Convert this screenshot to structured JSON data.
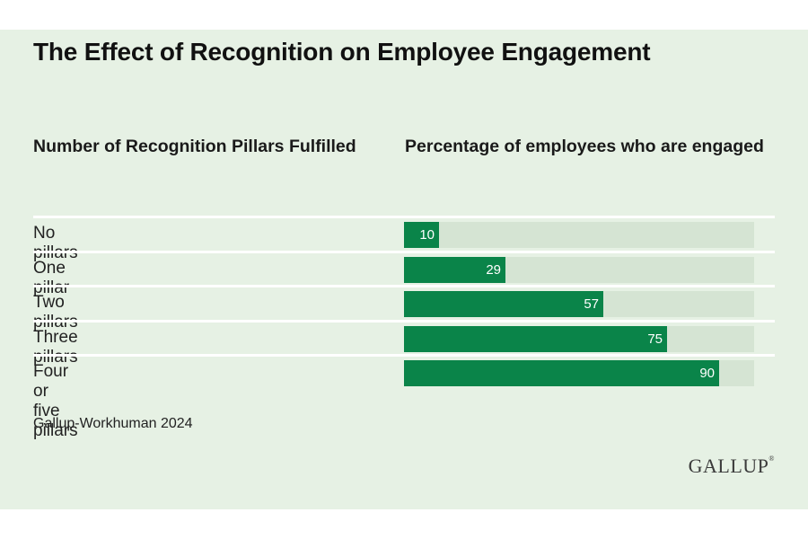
{
  "chart_data": {
    "type": "bar",
    "orientation": "horizontal",
    "title": "The Effect of Recognition on Employee Engagement",
    "category_header": "Number of Recognition Pillars Fulfilled",
    "value_header": "Percentage of employees who are engaged",
    "categories": [
      "No pillars",
      "One pillar",
      "Two pillars",
      "Three pillars",
      "Four or five pillars"
    ],
    "values": [
      10,
      29,
      57,
      75,
      90
    ],
    "xlim": [
      0,
      100
    ],
    "colors": {
      "bar": "#0a8449",
      "track": "#d5e4d3",
      "background": "#e6f1e4"
    },
    "grid": false,
    "legend": "none"
  },
  "source": "Gallup-Workhuman 2024",
  "logo": {
    "text": "GALLUP",
    "mark": "®"
  }
}
